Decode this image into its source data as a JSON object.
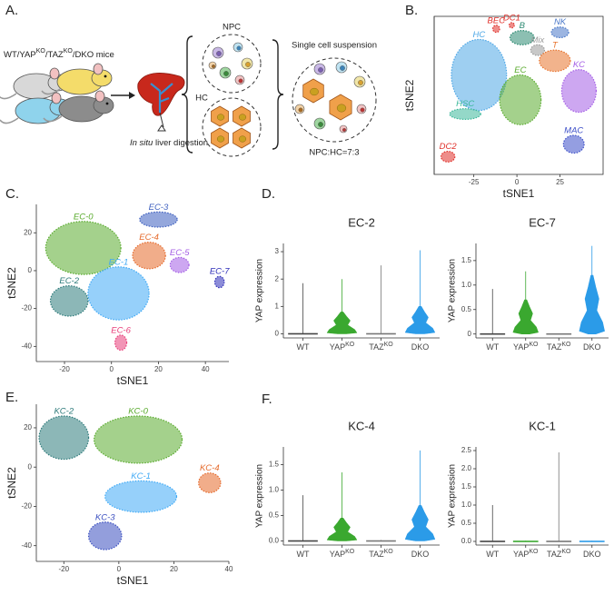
{
  "panel_labels": [
    "A.",
    "B.",
    "C.",
    "D.",
    "E.",
    "F."
  ],
  "panel_a": {
    "mouse_label": [
      "WT/YAP",
      "KO",
      "/TAZ",
      "KO",
      "/DKO mice"
    ],
    "digestion": [
      "In situ",
      " liver digestion"
    ],
    "npc": "NPC",
    "hc": "HC",
    "suspension": "Single cell suspension",
    "ratio": "NPC:HC=7:3"
  },
  "chart_data": [
    {
      "type": "scatter",
      "x_label": "tSNE1",
      "y_label": "tSNE2",
      "frame": true,
      "xlim": [
        -48,
        50
      ],
      "xticks": [
        -25,
        0,
        25
      ],
      "ylim": [
        -42,
        47
      ],
      "clusters": [
        {
          "name": "HC",
          "color": "#4ea7e6",
          "x": -22,
          "y": 14,
          "x_spread": 16,
          "y_spread": 20
        },
        {
          "name": "BEC",
          "color": "#e0302a",
          "x": -12,
          "y": 40,
          "x_spread": 2,
          "y_spread": 2
        },
        {
          "name": "DC1",
          "color": "#e0302a",
          "x": -3,
          "y": 42,
          "x_spread": 1.5,
          "y_spread": 1.5
        },
        {
          "name": "B",
          "color": "#2e8a73",
          "x": 3,
          "y": 35,
          "x_spread": 7,
          "y_spread": 4
        },
        {
          "name": "NK",
          "color": "#4a78c8",
          "x": 25,
          "y": 38,
          "x_spread": 5,
          "y_spread": 3
        },
        {
          "name": "Mix",
          "color": "#9a9a9a",
          "x": 12,
          "y": 28,
          "x_spread": 4,
          "y_spread": 3
        },
        {
          "name": "T",
          "color": "#e8742e",
          "x": 22,
          "y": 22,
          "x_spread": 9,
          "y_spread": 6
        },
        {
          "name": "KC",
          "color": "#a45ee5",
          "x": 36,
          "y": 5,
          "x_spread": 10,
          "y_spread": 12
        },
        {
          "name": "HSC",
          "color": "#3cb89a",
          "x": -30,
          "y": -8,
          "x_spread": 9,
          "y_spread": 3
        },
        {
          "name": "EC",
          "color": "#5aab2e",
          "x": 2,
          "y": 0,
          "x_spread": 12,
          "y_spread": 14
        },
        {
          "name": "MAC",
          "color": "#3d4fc8",
          "x": 33,
          "y": -25,
          "x_spread": 6,
          "y_spread": 5
        },
        {
          "name": "DC2",
          "color": "#e0302a",
          "x": -40,
          "y": -32,
          "x_spread": 4,
          "y_spread": 3
        }
      ]
    },
    {
      "type": "scatter",
      "x_label": "tSNE1",
      "y_label": "tSNE2",
      "xlim": [
        -32,
        50
      ],
      "xticks": [
        -20,
        0,
        20,
        40
      ],
      "ylim": [
        -48,
        35
      ],
      "yticks": [
        -40,
        -20,
        0,
        20
      ],
      "clusters": [
        {
          "name": "EC-0",
          "color": "#5aab2e",
          "x": -12,
          "y": 12,
          "x_spread": 16,
          "y_spread": 14
        },
        {
          "name": "EC-1",
          "color": "#3fa9f5",
          "x": 3,
          "y": -12,
          "x_spread": 13,
          "y_spread": 14
        },
        {
          "name": "EC-2",
          "color": "#2e7b7b",
          "x": -18,
          "y": -16,
          "x_spread": 8,
          "y_spread": 8
        },
        {
          "name": "EC-3",
          "color": "#3d5fbf",
          "x": 20,
          "y": 27,
          "x_spread": 8,
          "y_spread": 4
        },
        {
          "name": "EC-4",
          "color": "#e5692a",
          "x": 16,
          "y": 8,
          "x_spread": 7,
          "y_spread": 7
        },
        {
          "name": "EC-5",
          "color": "#a45ee5",
          "x": 29,
          "y": 3,
          "x_spread": 4,
          "y_spread": 4
        },
        {
          "name": "EC-6",
          "color": "#e83e7a",
          "x": 4,
          "y": -38,
          "x_spread": 2.5,
          "y_spread": 4
        },
        {
          "name": "EC-7",
          "color": "#2d2db8",
          "x": 46,
          "y": -6,
          "x_spread": 2,
          "y_spread": 3
        }
      ]
    },
    {
      "type": "violin",
      "title": "EC-2",
      "y_label": "YAP expression",
      "categories": [
        "WT",
        "YAP",
        "TAZ",
        "DKO"
      ],
      "category_superscripts": [
        null,
        "KO",
        "KO",
        null
      ],
      "colors": [
        "#444444",
        "#3aa82f",
        "#777777",
        "#2b9be8"
      ],
      "values": [
        1.85,
        2.0,
        2.5,
        3.05
      ],
      "q3": [
        0,
        0.8,
        0,
        1.0
      ],
      "ylim": [
        -0.15,
        3.3
      ],
      "yticks": [
        0,
        1,
        2,
        3
      ]
    },
    {
      "type": "violin",
      "title": "EC-7",
      "y_label": "YAP expression",
      "categories": [
        "WT",
        "YAP",
        "TAZ",
        "DKO"
      ],
      "category_superscripts": [
        null,
        "KO",
        "KO",
        null
      ],
      "colors": [
        "#444444",
        "#3aa82f",
        "#777777",
        "#2b9be8"
      ],
      "values": [
        0.92,
        1.28,
        0,
        1.8
      ],
      "q3": [
        0,
        0.7,
        0,
        1.2
      ],
      "ylim": [
        -0.08,
        1.85
      ],
      "yticks": [
        0,
        0.5,
        {
          "value": 1,
          "label": "1.0"
        },
        1.5
      ]
    },
    {
      "type": "scatter",
      "x_label": "tSNE1",
      "y_label": "tSNE2",
      "xlim": [
        -30,
        40
      ],
      "xticks": [
        -20,
        0,
        20,
        40
      ],
      "ylim": [
        -48,
        32
      ],
      "yticks": [
        -40,
        -20,
        0,
        20
      ],
      "clusters": [
        {
          "name": "KC-0",
          "color": "#5aab2e",
          "x": 7,
          "y": 14,
          "x_spread": 16,
          "y_spread": 12
        },
        {
          "name": "KC-1",
          "color": "#3fa9f5",
          "x": 8,
          "y": -15,
          "x_spread": 13,
          "y_spread": 8
        },
        {
          "name": "KC-2",
          "color": "#2e7b7b",
          "x": -20,
          "y": 15,
          "x_spread": 9,
          "y_spread": 11
        },
        {
          "name": "KC-3",
          "color": "#3a4fc0",
          "x": -5,
          "y": -35,
          "x_spread": 6,
          "y_spread": 7
        },
        {
          "name": "KC-4",
          "color": "#e5692a",
          "x": 33,
          "y": -8,
          "x_spread": 4,
          "y_spread": 5
        }
      ]
    },
    {
      "type": "violin",
      "title": "KC-4",
      "y_label": "YAP expression",
      "categories": [
        "WT",
        "YAP",
        "TAZ",
        "DKO"
      ],
      "category_superscripts": [
        null,
        "KO",
        "KO",
        null
      ],
      "colors": [
        "#444444",
        "#3aa82f",
        "#777777",
        "#2b9be8"
      ],
      "values": [
        0.9,
        1.35,
        0.02,
        1.78
      ],
      "q3": [
        0,
        0.45,
        0,
        0.7
      ],
      "ylim": [
        -0.08,
        1.85
      ],
      "yticks": [
        {
          "value": 0,
          "label": "0.0"
        },
        0.5,
        {
          "value": 1,
          "label": "1.0"
        },
        1.5
      ]
    },
    {
      "type": "violin",
      "title": "KC-1",
      "y_label": "YAP expression",
      "categories": [
        "WT",
        "YAP",
        "TAZ",
        "DKO"
      ],
      "category_superscripts": [
        null,
        "KO",
        "KO",
        null
      ],
      "colors": [
        "#444444",
        "#3aa82f",
        "#777777",
        "#2b9be8"
      ],
      "values": [
        1.0,
        0.02,
        2.45,
        0.02
      ],
      "q3": [
        0,
        0,
        0,
        0
      ],
      "ylim": [
        -0.1,
        2.6
      ],
      "yticks": [
        {
          "value": 0,
          "label": "0.0"
        },
        0.5,
        {
          "value": 1,
          "label": "1.0"
        },
        1.5,
        {
          "value": 2,
          "label": "2.0"
        },
        2.5
      ]
    }
  ]
}
